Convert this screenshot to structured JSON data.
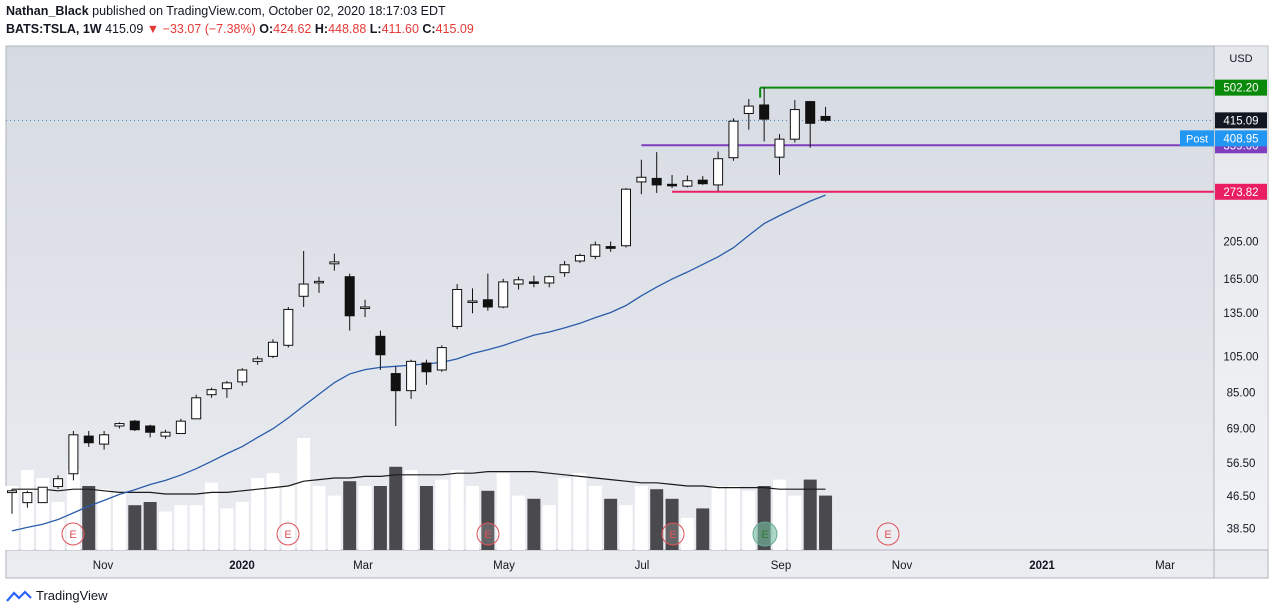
{
  "header": {
    "author": "Nathan_Black",
    "published": "published on TradingView.com, October 02, 2020 18:17:03 EDT",
    "symbol": "BATS:TSLA, 1W",
    "last": "415.09",
    "change": "▼ −33.07 (−7.38%)",
    "o_label": "O:",
    "o": "424.62",
    "h_label": "H:",
    "h": "448.88",
    "l_label": "L:",
    "l": "411.60",
    "c_label": "C:",
    "c": "415.09"
  },
  "footer": {
    "brand": "TradingView"
  },
  "chart_data": {
    "type": "candlestick",
    "currency": "USD",
    "y_scale": "log",
    "ylim": [
      34,
      640
    ],
    "y_ticks": [
      "38.50",
      "46.50",
      "56.50",
      "69.00",
      "85.00",
      "105.00",
      "135.00",
      "165.00",
      "205.00"
    ],
    "x_ticks": [
      "Nov",
      "2020",
      "Mar",
      "May",
      "Jul",
      "Sep",
      "Nov",
      "2021",
      "Mar"
    ],
    "candles": [
      {
        "o": 47.5,
        "h": 48.5,
        "l": 42.0,
        "c": 48.0
      },
      {
        "o": 44.8,
        "h": 48.0,
        "l": 43.5,
        "c": 47.5
      },
      {
        "o": 44.8,
        "h": 49.0,
        "l": 44.8,
        "c": 49.0
      },
      {
        "o": 49.2,
        "h": 52.5,
        "l": 48.5,
        "c": 51.5
      },
      {
        "o": 53.0,
        "h": 68.0,
        "l": 51.0,
        "c": 66.5
      },
      {
        "o": 66.0,
        "h": 68.0,
        "l": 62.0,
        "c": 63.5
      },
      {
        "o": 63.0,
        "h": 68.0,
        "l": 61.0,
        "c": 66.5
      },
      {
        "o": 70.0,
        "h": 71.5,
        "l": 69.0,
        "c": 71.0
      },
      {
        "o": 72.0,
        "h": 72.5,
        "l": 68.0,
        "c": 68.5
      },
      {
        "o": 70.0,
        "h": 70.5,
        "l": 65.5,
        "c": 67.5
      },
      {
        "o": 66.0,
        "h": 68.5,
        "l": 65.0,
        "c": 67.5
      },
      {
        "o": 67.0,
        "h": 73.0,
        "l": 67.0,
        "c": 72.0
      },
      {
        "o": 73.0,
        "h": 84.0,
        "l": 73.0,
        "c": 82.5
      },
      {
        "o": 84.0,
        "h": 87.5,
        "l": 82.5,
        "c": 86.5
      },
      {
        "o": 87.0,
        "h": 91.0,
        "l": 82.5,
        "c": 90.0
      },
      {
        "o": 90.5,
        "h": 98.0,
        "l": 88.5,
        "c": 97.0
      },
      {
        "o": 102.0,
        "h": 105.0,
        "l": 100.0,
        "c": 103.5
      },
      {
        "o": 105.0,
        "h": 116.0,
        "l": 104.0,
        "c": 114.0
      },
      {
        "o": 112.0,
        "h": 140.0,
        "l": 110.5,
        "c": 138.0
      },
      {
        "o": 149.0,
        "h": 194.0,
        "l": 140.0,
        "c": 160.0
      },
      {
        "o": 162.0,
        "h": 167.0,
        "l": 152.0,
        "c": 162.5
      },
      {
        "o": 180.0,
        "h": 191.0,
        "l": 173.0,
        "c": 182.0
      },
      {
        "o": 167.0,
        "h": 170.0,
        "l": 122.0,
        "c": 133.0
      },
      {
        "o": 140.0,
        "h": 146.0,
        "l": 132.0,
        "c": 140.0
      },
      {
        "o": 118.0,
        "h": 122.0,
        "l": 97.0,
        "c": 106.0
      },
      {
        "o": 95.0,
        "h": 99.0,
        "l": 70.0,
        "c": 86.0
      },
      {
        "o": 86.0,
        "h": 103.0,
        "l": 82.0,
        "c": 102.0
      },
      {
        "o": 101.0,
        "h": 103.0,
        "l": 89.0,
        "c": 96.0
      },
      {
        "o": 97.0,
        "h": 112.0,
        "l": 96.0,
        "c": 110.5
      },
      {
        "o": 125.0,
        "h": 160.0,
        "l": 123.0,
        "c": 155.0
      },
      {
        "o": 145.0,
        "h": 156.0,
        "l": 135.0,
        "c": 145.0
      },
      {
        "o": 146.0,
        "h": 170.0,
        "l": 137.0,
        "c": 140.0
      },
      {
        "o": 140.0,
        "h": 165.0,
        "l": 139.0,
        "c": 162.0
      },
      {
        "o": 160.0,
        "h": 167.0,
        "l": 155.0,
        "c": 164.0
      },
      {
        "o": 162.0,
        "h": 168.0,
        "l": 157.0,
        "c": 161.0
      },
      {
        "o": 161.0,
        "h": 168.0,
        "l": 157.0,
        "c": 167.0
      },
      {
        "o": 171.0,
        "h": 183.0,
        "l": 167.0,
        "c": 179.0
      },
      {
        "o": 183.0,
        "h": 191.0,
        "l": 181.0,
        "c": 189.0
      },
      {
        "o": 188.0,
        "h": 205.0,
        "l": 185.0,
        "c": 201.0
      },
      {
        "o": 199.0,
        "h": 205.0,
        "l": 193.0,
        "c": 197.0
      },
      {
        "o": 200.0,
        "h": 280.0,
        "l": 198.0,
        "c": 278.0
      },
      {
        "o": 290.0,
        "h": 330.0,
        "l": 270.0,
        "c": 298.0
      },
      {
        "o": 296.0,
        "h": 345.0,
        "l": 272.0,
        "c": 285.0
      },
      {
        "o": 286.0,
        "h": 302.0,
        "l": 280.0,
        "c": 285.0
      },
      {
        "o": 283.0,
        "h": 301.0,
        "l": 281.0,
        "c": 292.0
      },
      {
        "o": 293.0,
        "h": 300.0,
        "l": 285.0,
        "c": 287.0
      },
      {
        "o": 285.0,
        "h": 346.0,
        "l": 275.0,
        "c": 332.0
      },
      {
        "o": 334.0,
        "h": 420.0,
        "l": 328.0,
        "c": 413.0
      },
      {
        "o": 432.0,
        "h": 470.0,
        "l": 393.0,
        "c": 451.0
      },
      {
        "o": 454.0,
        "h": 502.0,
        "l": 367.0,
        "c": 418.0
      },
      {
        "o": 335.0,
        "h": 383.0,
        "l": 302.0,
        "c": 372.0
      },
      {
        "o": 372.0,
        "h": 467.0,
        "l": 365.0,
        "c": 442.0
      },
      {
        "o": 463.0,
        "h": 465.0,
        "l": 354.0,
        "c": 408.0
      },
      {
        "o": 424.62,
        "h": 448.88,
        "l": 411.6,
        "c": 415.09
      }
    ],
    "ma_20w": [
      38.0,
      38.8,
      39.5,
      40.6,
      42.2,
      43.9,
      45.4,
      47.0,
      48.3,
      49.8,
      51.0,
      52.6,
      54.6,
      57.0,
      59.6,
      62.1,
      65.5,
      68.9,
      73.4,
      78.7,
      84.2,
      90.1,
      94.8,
      97.2,
      98.5,
      99.1,
      99.8,
      100.5,
      101.4,
      103.5,
      106.8,
      109.1,
      111.9,
      115.3,
      118.8,
      121.0,
      124.0,
      127.3,
      131.6,
      135.6,
      141.2,
      149.4,
      157.2,
      164.7,
      171.6,
      179.4,
      187.5,
      197.7,
      212.4,
      227.5,
      238.3,
      248.7,
      259.3,
      268.6
    ],
    "volume": {
      "ymax": 100,
      "values": [
        40,
        50,
        45,
        30,
        50,
        40,
        38,
        36,
        28,
        30,
        24,
        28,
        28,
        42,
        26,
        30,
        45,
        48,
        40,
        70,
        40,
        34,
        43,
        40,
        40,
        52,
        50,
        40,
        44,
        50,
        40,
        37,
        48,
        34,
        32,
        28,
        45,
        48,
        40,
        32,
        28,
        40,
        38,
        32,
        20,
        26,
        40,
        40,
        37,
        40,
        44,
        34,
        44,
        34
      ],
      "ma": [
        38,
        38,
        38,
        37,
        38,
        38,
        37,
        36,
        36,
        36,
        35,
        35,
        35,
        36,
        36,
        37,
        38,
        39,
        40,
        43,
        44,
        45,
        45,
        46,
        46,
        47,
        47,
        47,
        47,
        48,
        48,
        49,
        49,
        49,
        49,
        48,
        47,
        46,
        45,
        44,
        43,
        42,
        42,
        41,
        40,
        40,
        39,
        39,
        39,
        39,
        38,
        38,
        38,
        38
      ]
    },
    "earnings_markers": [
      "E",
      "E",
      "E",
      "E",
      "E"
    ],
    "hlines": [
      {
        "label": "502.20",
        "value": 502.2,
        "color": "#0a8a0a"
      },
      {
        "label": "359.00",
        "value": 359.0,
        "color": "#7e3fbf"
      },
      {
        "label": "273.82",
        "value": 273.82,
        "color": "#e91e63"
      }
    ],
    "price_labels": [
      {
        "label": "415.09",
        "value": 415.09,
        "color": "#131722"
      },
      {
        "label": "408.95",
        "value": 408.95,
        "color": "#2196f3",
        "tag": "Post"
      }
    ]
  }
}
